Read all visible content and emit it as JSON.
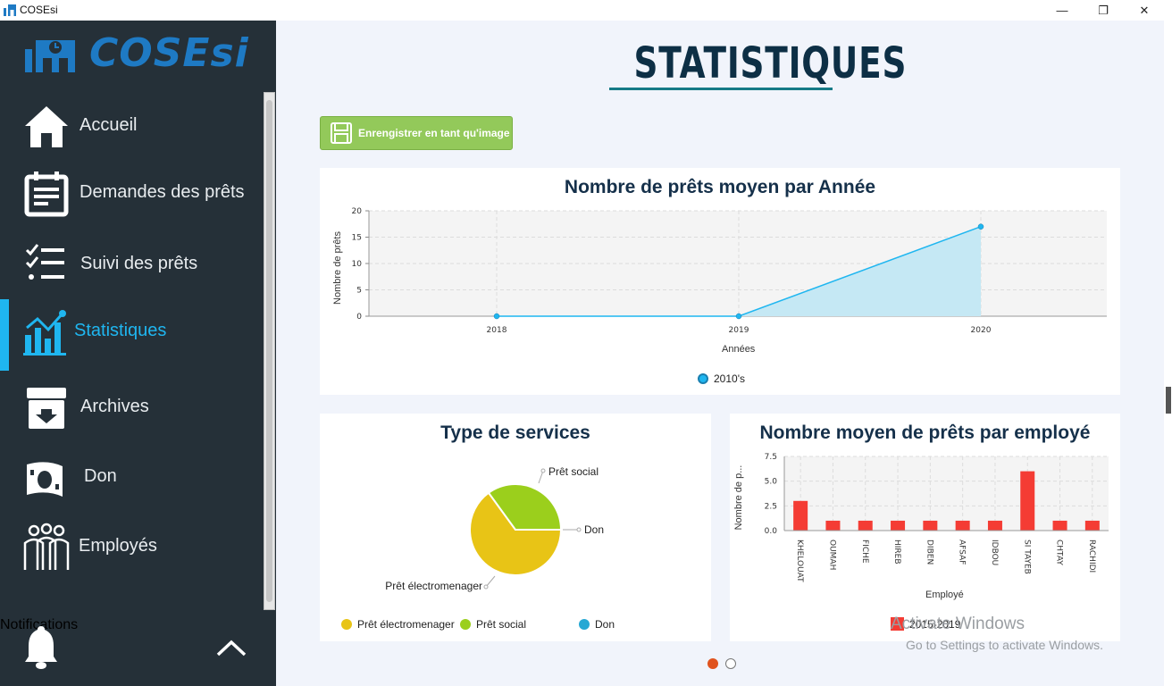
{
  "window": {
    "title": "COSEsi",
    "controls": {
      "minimize": "—",
      "maximize": "❐",
      "close": "✕"
    }
  },
  "sidebar": {
    "logo_text": "COSEsi",
    "items": [
      {
        "label": "Accueil",
        "icon": "home-icon",
        "active": false
      },
      {
        "label": "Demandes des prêts",
        "icon": "calendar-form-icon",
        "active": false
      },
      {
        "label": "Suivi des prêts",
        "icon": "checklist-icon",
        "active": false
      },
      {
        "label": "Statistiques",
        "icon": "chart-icon",
        "active": true
      },
      {
        "label": "Archives",
        "icon": "archive-icon",
        "active": false
      },
      {
        "label": "Don",
        "icon": "money-icon",
        "active": false
      },
      {
        "label": "Employés",
        "icon": "employees-icon",
        "active": false
      }
    ],
    "notifications_label": "Notifications",
    "colors": {
      "background": "#253038",
      "accent": "#1fb6f0"
    }
  },
  "main": {
    "page_title": "STATISTIQUES",
    "save_button_label": "Enrengistrer en tant qu'image",
    "watermark": {
      "title": "Activate Windows",
      "subtitle": "Go to Settings to activate Windows."
    },
    "pager": {
      "count": 2,
      "active_index": 0
    }
  },
  "chart_data": [
    {
      "type": "area",
      "title": "Nombre de prêts moyen par Année",
      "xlabel": "Années",
      "ylabel": "Nombre de prêts",
      "categories": [
        "2018",
        "2019",
        "2020"
      ],
      "series": [
        {
          "name": "2010's",
          "values": [
            0,
            0,
            17
          ],
          "color": "#1fb6f0"
        }
      ],
      "ylim": [
        0,
        20
      ],
      "yticks": [
        "0",
        "5",
        "10",
        "15",
        "20"
      ],
      "grid": true,
      "legend": "bottom"
    },
    {
      "type": "pie",
      "title": "Type de services",
      "slices": [
        {
          "label": "Prêt électromenager",
          "value": 65,
          "color": "#e8c416"
        },
        {
          "label": "Prêt social",
          "value": 35,
          "color": "#9bcf1c"
        },
        {
          "label": "Don",
          "value": 0,
          "color": "#26a8d4"
        }
      ],
      "legend": "bottom"
    },
    {
      "type": "bar",
      "title": "Nombre moyen de prêts par employé",
      "xlabel": "Employé",
      "ylabel": "Nombre de p...",
      "categories": [
        "KHELOUAT",
        "OUMAH",
        "FICHE",
        "HIREB",
        "DIBEN",
        "AFSAF",
        "IDBOU",
        "SI TAYEB",
        "CHTAY",
        "RACHIDI"
      ],
      "series": [
        {
          "name": "2015-2019",
          "values": [
            3,
            1,
            1,
            1,
            1,
            1,
            1,
            6,
            1,
            1
          ],
          "color": "#f43c34"
        }
      ],
      "ylim": [
        0,
        7.5
      ],
      "yticks": [
        "0.0",
        "2.5",
        "5.0",
        "7.5"
      ],
      "grid": true,
      "legend": "bottom"
    }
  ]
}
